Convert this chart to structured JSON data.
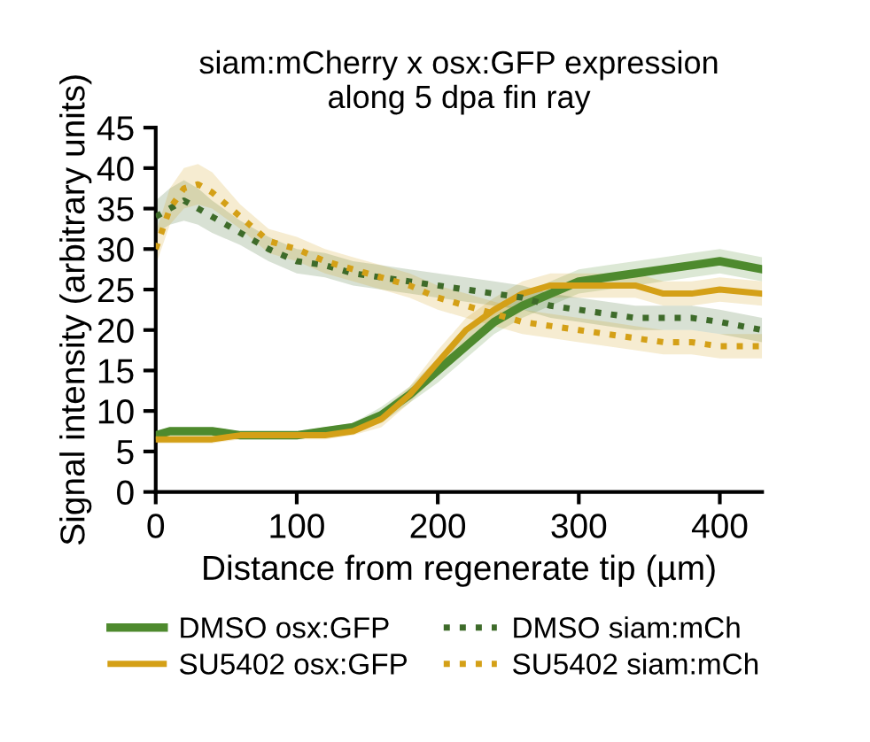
{
  "chart_data": {
    "type": "line",
    "title": "siam:mCherry x osx:GFP expression\nalong 5 dpa fin ray",
    "xlabel": "Distance from regenerate tip (µm)",
    "ylabel": "Signal intensity (arbitrary units)",
    "xlim": [
      0,
      430
    ],
    "xticks": [
      0,
      100,
      200,
      300,
      400
    ],
    "ylim": [
      0,
      45
    ],
    "yticks": [
      0,
      5,
      10,
      15,
      20,
      25,
      30,
      35,
      40,
      45
    ],
    "grid": false,
    "legend": "bottom",
    "marker": "none",
    "x": [
      0,
      10,
      20,
      30,
      40,
      60,
      80,
      100,
      120,
      140,
      160,
      180,
      200,
      220,
      240,
      260,
      280,
      300,
      320,
      340,
      360,
      380,
      400,
      430
    ],
    "series": [
      {
        "name": "DMSO osx:GFP",
        "color": "#4e8a2e",
        "line_style": "solid",
        "values": [
          7,
          7.5,
          7.5,
          7.5,
          7.5,
          7,
          7,
          7,
          7.5,
          8,
          9.5,
          12,
          15,
          18,
          21,
          23,
          24.5,
          26,
          26.5,
          27,
          27.5,
          28,
          28.5,
          27.5
        ],
        "lower": [
          6.5,
          7,
          7,
          7,
          7,
          6.5,
          6.5,
          6.5,
          7,
          7.5,
          8.5,
          11,
          13.5,
          16.5,
          19.5,
          21.5,
          23,
          24.5,
          25,
          25.5,
          26,
          26.5,
          27,
          26
        ],
        "upper": [
          7.5,
          8,
          8,
          8,
          8,
          7.5,
          7.5,
          7.5,
          8,
          8.5,
          10.5,
          13,
          16.5,
          19.5,
          22.5,
          24.5,
          26,
          27.5,
          28,
          28.5,
          29,
          29.5,
          30,
          29
        ]
      },
      {
        "name": "SU5402 osx:GFP",
        "color": "#d4a017",
        "line_style": "solid",
        "values": [
          6.5,
          6.5,
          6.5,
          6.5,
          6.5,
          7,
          7,
          7,
          7,
          7.5,
          9,
          12,
          16,
          20,
          22.5,
          24.5,
          25.5,
          25.5,
          25.5,
          25.5,
          24.5,
          24.5,
          25,
          24.5
        ],
        "lower": [
          6,
          6,
          6,
          6,
          6,
          6.5,
          6.5,
          6.5,
          6.5,
          7,
          8,
          11,
          14.5,
          18.5,
          21,
          23,
          24,
          24,
          24,
          24,
          23,
          23,
          23.5,
          23
        ],
        "upper": [
          7,
          7,
          7,
          7,
          7,
          7.5,
          7.5,
          7.5,
          7.5,
          8,
          10,
          13,
          17.5,
          21.5,
          24,
          26,
          27,
          27,
          27,
          27,
          26,
          26,
          26.5,
          26
        ]
      },
      {
        "name": "DMSO siam:mCh",
        "color": "#3e6b2a",
        "line_style": "dotted",
        "values": [
          34,
          35,
          36,
          35,
          34,
          32,
          30,
          28.5,
          28,
          27,
          26.5,
          26,
          25.5,
          25,
          24.5,
          24,
          23,
          22.5,
          22,
          21.5,
          21.5,
          21.5,
          21,
          20
        ],
        "lower": [
          32,
          33,
          33.5,
          33,
          32,
          30.5,
          28.5,
          27,
          26.5,
          25.5,
          25,
          24.5,
          24,
          23.5,
          23,
          22.5,
          21.5,
          21,
          20.5,
          20,
          20,
          20,
          19.5,
          18.5
        ],
        "upper": [
          36,
          37.5,
          38.5,
          37.5,
          36,
          33.5,
          31.5,
          30,
          29.5,
          28.5,
          28,
          27.5,
          27,
          26.5,
          26,
          25.5,
          24.5,
          24,
          23.5,
          23,
          23,
          23,
          22.5,
          21.5
        ]
      },
      {
        "name": "SU5402 siam:mCh",
        "color": "#d4a017",
        "line_style": "dotted",
        "values": [
          30,
          35,
          37.5,
          38,
          37,
          34,
          31,
          30,
          28.5,
          27.5,
          26.5,
          25.5,
          24,
          23,
          22,
          21,
          20.5,
          20,
          19.5,
          19,
          18.5,
          18.5,
          18,
          18
        ],
        "lower": [
          28,
          33,
          35,
          35.5,
          35,
          32.5,
          29.5,
          28.5,
          27,
          26,
          25,
          24,
          22.5,
          21.5,
          20.5,
          19.5,
          19,
          18.5,
          18,
          17.5,
          17,
          17,
          16.5,
          16.5
        ],
        "upper": [
          32,
          37.5,
          40,
          40.5,
          39.5,
          35.5,
          32.5,
          31.5,
          30,
          29,
          28,
          27,
          25.5,
          24.5,
          23.5,
          22.5,
          22,
          21.5,
          21,
          20.5,
          20,
          20,
          19.5,
          19.5
        ]
      }
    ]
  }
}
